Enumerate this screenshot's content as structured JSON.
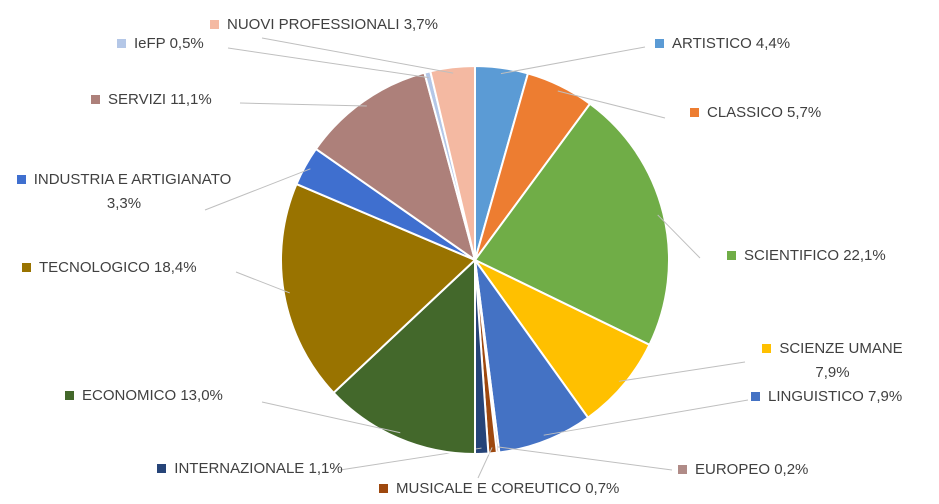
{
  "chart_data": {
    "type": "pie",
    "categories": [
      "ARTISTICO",
      "CLASSICO",
      "SCIENTIFICO",
      "SCIENZE UMANE",
      "LINGUISTICO",
      "EUROPEO",
      "MUSICALE E COREUTICO",
      "INTERNAZIONALE",
      "ECONOMICO",
      "TECNOLOGICO",
      "INDUSTRIA E ARTIGIANATO",
      "SERVIZI",
      "IeFP",
      "NUOVI PROFESSIONALI"
    ],
    "values": [
      4.4,
      5.7,
      22.1,
      7.9,
      7.9,
      0.2,
      0.7,
      1.1,
      13.0,
      18.4,
      3.3,
      11.1,
      0.5,
      3.7
    ],
    "value_labels": [
      "4,4%",
      "5,7%",
      "22,1%",
      "7,9%",
      "7,9%",
      "0,2%",
      "0,7%",
      "1,1%",
      "13,0%",
      "18,4%",
      "3,3%",
      "11,1%",
      "0,5%",
      "3,7%"
    ],
    "colors": [
      "#5b9bd5",
      "#ed7d31",
      "#70ad47",
      "#ffc000",
      "#4472c4",
      "#b08b87",
      "#9e480e",
      "#264478",
      "#43682b",
      "#997300",
      "#3f6fcf",
      "#ad807a",
      "#b4c7e7",
      "#f4b9a2"
    ]
  }
}
